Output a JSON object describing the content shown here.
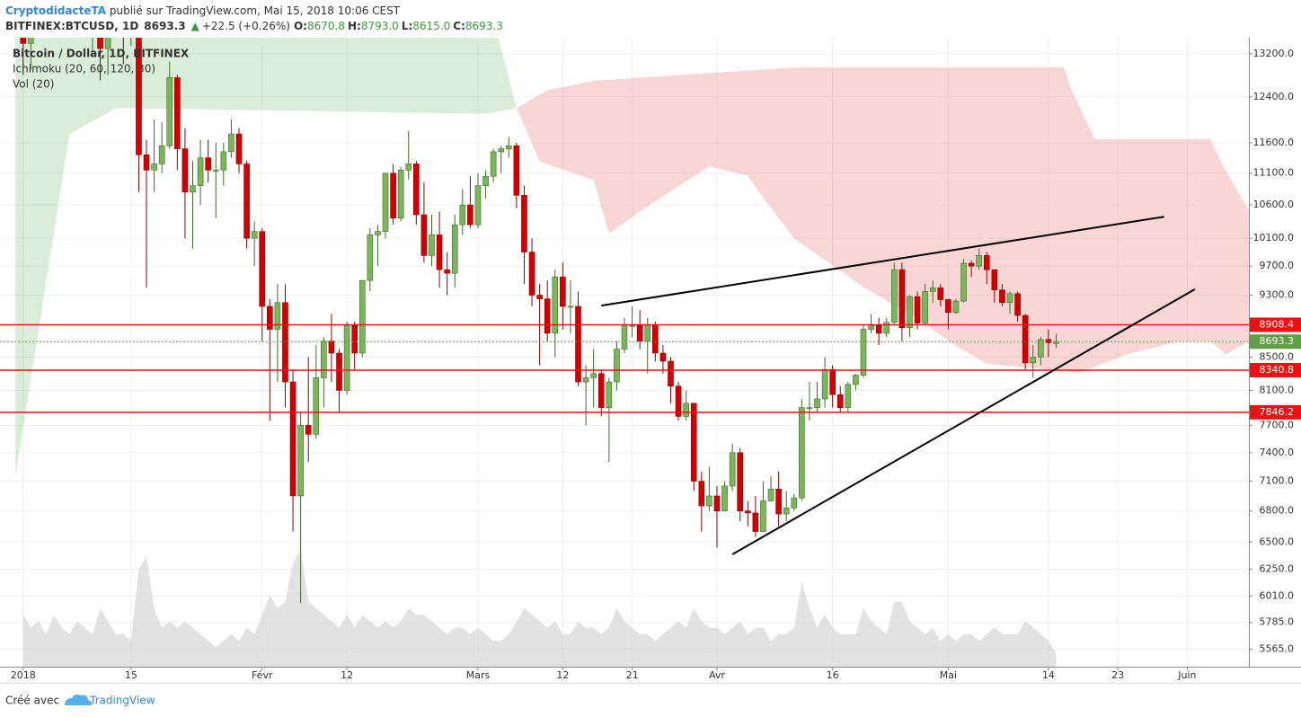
{
  "header": {
    "author": "CryptodidacteTA",
    "published": " publié sur TradingView.com, Mai 15, 2018 10:06 CEST",
    "symbol": "BITFINEX:BTCUSD, 1D",
    "last": "8693.3",
    "arrow": "▲",
    "change": "+22.5 (+0.26%)",
    "o_label": "O:",
    "o": "8670.8",
    "h_label": "H:",
    "h": "8793.0",
    "l_label": "L:",
    "l": "8615.0",
    "c_label": "C:",
    "c": "8693.3"
  },
  "legend": [
    "Bitcoin / Dollar, 1D, BITFINEX",
    "Ichimoku (20, 60, 120, 30)",
    "Vol (20)"
  ],
  "footer": {
    "made_with": "Créé avec",
    "brand": "TradingView"
  },
  "chart_data": {
    "type": "candlestick",
    "log_scale": true,
    "grid": true,
    "up_color": "#7cb65a",
    "up_border": "#3d6b2a",
    "down_color": "#d40000",
    "down_border": "#8a0000",
    "volume_color": "#cfcfcf",
    "xlim": [
      "2017-12-29",
      "2018-06-09"
    ],
    "ylim": [
      5425,
      13510
    ],
    "xticks": [
      {
        "value": "2018-01-01",
        "label": "2018"
      },
      {
        "value": "2018-01-15",
        "label": "15"
      },
      {
        "value": "2018-02-01",
        "label": "Févr"
      },
      {
        "value": "2018-02-12",
        "label": "12"
      },
      {
        "value": "2018-03-01",
        "label": "Mars"
      },
      {
        "value": "2018-03-12",
        "label": "12"
      },
      {
        "value": "2018-03-21",
        "label": "21"
      },
      {
        "value": "2018-04-01",
        "label": "Avr"
      },
      {
        "value": "2018-04-16",
        "label": "16"
      },
      {
        "value": "2018-05-01",
        "label": "Mai"
      },
      {
        "value": "2018-05-14",
        "label": "14"
      },
      {
        "value": "2018-05-23",
        "label": "23"
      },
      {
        "value": "2018-06-01",
        "label": "Juin"
      }
    ],
    "yticks": [
      {
        "value": 13200,
        "label": "13200.0"
      },
      {
        "value": 12400,
        "label": "12400.0"
      },
      {
        "value": 11600,
        "label": "11600.0"
      },
      {
        "value": 11100,
        "label": "11100.0"
      },
      {
        "value": 10600,
        "label": "10600.0"
      },
      {
        "value": 10100,
        "label": "10100.0"
      },
      {
        "value": 9700,
        "label": "9700.0"
      },
      {
        "value": 9300,
        "label": "9300.0"
      },
      {
        "value": 8500,
        "label": "8500.0"
      },
      {
        "value": 8100,
        "label": "8100.0"
      },
      {
        "value": 7700,
        "label": "7700.0"
      },
      {
        "value": 7400,
        "label": "7400.0"
      },
      {
        "value": 7100,
        "label": "7100.0"
      },
      {
        "value": 6800,
        "label": "6800.0"
      },
      {
        "value": 6500,
        "label": "6500.0"
      },
      {
        "value": 6250,
        "label": "6250.0"
      },
      {
        "value": 6010,
        "label": "6010.0"
      },
      {
        "value": 5785,
        "label": "5785.0"
      },
      {
        "value": 5565,
        "label": "5565.0"
      }
    ],
    "x": [
      "2018-01-01",
      "2018-01-02",
      "2018-01-03",
      "2018-01-04",
      "2018-01-05",
      "2018-01-06",
      "2018-01-07",
      "2018-01-08",
      "2018-01-09",
      "2018-01-10",
      "2018-01-11",
      "2018-01-12",
      "2018-01-13",
      "2018-01-14",
      "2018-01-15",
      "2018-01-16",
      "2018-01-17",
      "2018-01-18",
      "2018-01-19",
      "2018-01-20",
      "2018-01-21",
      "2018-01-22",
      "2018-01-23",
      "2018-01-24",
      "2018-01-25",
      "2018-01-26",
      "2018-01-27",
      "2018-01-28",
      "2018-01-29",
      "2018-01-30",
      "2018-01-31",
      "2018-02-01",
      "2018-02-02",
      "2018-02-03",
      "2018-02-04",
      "2018-02-05",
      "2018-02-06",
      "2018-02-07",
      "2018-02-08",
      "2018-02-09",
      "2018-02-10",
      "2018-02-11",
      "2018-02-12",
      "2018-02-13",
      "2018-02-14",
      "2018-02-15",
      "2018-02-16",
      "2018-02-17",
      "2018-02-18",
      "2018-02-19",
      "2018-02-20",
      "2018-02-21",
      "2018-02-22",
      "2018-02-23",
      "2018-02-24",
      "2018-02-25",
      "2018-02-26",
      "2018-02-27",
      "2018-02-28",
      "2018-03-01",
      "2018-03-02",
      "2018-03-03",
      "2018-03-04",
      "2018-03-05",
      "2018-03-06",
      "2018-03-07",
      "2018-03-08",
      "2018-03-09",
      "2018-03-10",
      "2018-03-11",
      "2018-03-12",
      "2018-03-13",
      "2018-03-14",
      "2018-03-15",
      "2018-03-16",
      "2018-03-17",
      "2018-03-18",
      "2018-03-19",
      "2018-03-20",
      "2018-03-21",
      "2018-03-22",
      "2018-03-23",
      "2018-03-24",
      "2018-03-25",
      "2018-03-26",
      "2018-03-27",
      "2018-03-28",
      "2018-03-29",
      "2018-03-30",
      "2018-03-31",
      "2018-04-01",
      "2018-04-02",
      "2018-04-03",
      "2018-04-04",
      "2018-04-05",
      "2018-04-06",
      "2018-04-07",
      "2018-04-08",
      "2018-04-09",
      "2018-04-10",
      "2018-04-11",
      "2018-04-12",
      "2018-04-13",
      "2018-04-14",
      "2018-04-15",
      "2018-04-16",
      "2018-04-17",
      "2018-04-18",
      "2018-04-19",
      "2018-04-20",
      "2018-04-21",
      "2018-04-22",
      "2018-04-23",
      "2018-04-24",
      "2018-04-25",
      "2018-04-26",
      "2018-04-27",
      "2018-04-28",
      "2018-04-29",
      "2018-04-30",
      "2018-05-01",
      "2018-05-02",
      "2018-05-03",
      "2018-05-04",
      "2018-05-05",
      "2018-05-06",
      "2018-05-07",
      "2018-05-08",
      "2018-05-09",
      "2018-05-10",
      "2018-05-11",
      "2018-05-12",
      "2018-05-13",
      "2018-05-14",
      "2018-05-15"
    ],
    "open": [
      13850,
      13400,
      14750,
      15100,
      15150,
      16900,
      17150,
      16200,
      14900,
      14400,
      14900,
      13300,
      13800,
      14200,
      13600,
      13600,
      11400,
      11150,
      11250,
      11550,
      12750,
      11500,
      10800,
      10900,
      11350,
      11150,
      11150,
      11450,
      11750,
      11250,
      10100,
      10200,
      9150,
      8850,
      9200,
      8200,
      6950,
      7700,
      7600,
      8250,
      8700,
      8550,
      8100,
      8900,
      8550,
      9500,
      10150,
      10200,
      11100,
      10400,
      11150,
      11250,
      10450,
      9850,
      10150,
      9650,
      9600,
      10300,
      10600,
      10300,
      10900,
      11050,
      11450,
      11500,
      11550,
      10750,
      9900,
      9300,
      9250,
      8800,
      9550,
      9150,
      9150,
      8200,
      8250,
      8300,
      7900,
      8200,
      8600,
      8900,
      8900,
      8700,
      8900,
      8550,
      8450,
      8150,
      7800,
      7950,
      7100,
      6850,
      6950,
      6800,
      7050,
      7400,
      6800,
      6780,
      6600,
      6900,
      7020,
      6770,
      6830,
      6930,
      7900,
      7900,
      8000,
      8350,
      8050,
      7900,
      8170,
      8280,
      8850,
      8900,
      8800,
      8940,
      9650,
      8870,
      9280,
      8930,
      9350,
      9400,
      9240,
      9070,
      9220,
      9740,
      9700,
      9850,
      9650,
      9370,
      9200,
      9320,
      9030,
      8430,
      8500,
      8720,
      8670.8
    ],
    "high": [
      13900,
      15400,
      15450,
      15700,
      17150,
      17250,
      17100,
      16300,
      15350,
      14900,
      14950,
      14150,
      14450,
      14500,
      14200,
      13650,
      11650,
      12000,
      11950,
      13050,
      12800,
      11850,
      11300,
      11650,
      11650,
      11600,
      11600,
      12000,
      11850,
      11300,
      10350,
      10250,
      9250,
      9450,
      9450,
      8350,
      7850,
      8500,
      8650,
      8750,
      9050,
      8600,
      8950,
      8950,
      9500,
      10250,
      10300,
      11100,
      11250,
      11200,
      11800,
      11300,
      10950,
      10450,
      10500,
      9900,
      10450,
      10850,
      11050,
      11100,
      11150,
      11500,
      11550,
      11700,
      11600,
      10900,
      10100,
      9450,
      9500,
      9650,
      9750,
      9500,
      9350,
      8400,
      8600,
      8350,
      8250,
      8700,
      9000,
      9150,
      9100,
      9000,
      8950,
      8650,
      8500,
      8200,
      8100,
      7950,
      7200,
      7250,
      7050,
      7100,
      7500,
      7450,
      6900,
      6950,
      7100,
      7150,
      7200,
      7000,
      6970,
      8000,
      8200,
      8200,
      8500,
      8400,
      8150,
      8200,
      8300,
      8900,
      9050,
      9000,
      9000,
      9750,
      9750,
      9300,
      9350,
      9450,
      9500,
      9450,
      9250,
      9250,
      9800,
      9780,
      9950,
      9900,
      9650,
      9450,
      9350,
      9350,
      9050,
      8650,
      8750,
      8850,
      8793
    ],
    "low": [
      12800,
      12900,
      14600,
      14250,
      14850,
      16200,
      15800,
      14000,
      14150,
      13150,
      12700,
      12800,
      13700,
      13000,
      13350,
      10800,
      9400,
      10800,
      11100,
      11500,
      11150,
      10100,
      9950,
      10600,
      10950,
      10400,
      10900,
      11350,
      11100,
      9950,
      9700,
      8700,
      7750,
      8200,
      7900,
      6600,
      5950,
      7300,
      7550,
      7900,
      8200,
      7850,
      8050,
      8350,
      8500,
      9350,
      9700,
      10100,
      10300,
      10350,
      11000,
      10300,
      9750,
      9700,
      9400,
      9300,
      9400,
      10150,
      10250,
      10250,
      10700,
      10950,
      11100,
      11350,
      10550,
      9450,
      9150,
      8400,
      8700,
      8500,
      8850,
      8800,
      8150,
      7700,
      7900,
      7800,
      7300,
      8100,
      8550,
      8750,
      8600,
      8300,
      8450,
      8300,
      7950,
      7750,
      7750,
      7000,
      6600,
      6800,
      6450,
      6800,
      7000,
      6700,
      6650,
      6550,
      6600,
      6900,
      6650,
      6700,
      6800,
      6900,
      7750,
      7850,
      7900,
      7900,
      7850,
      7850,
      8100,
      8250,
      8800,
      8650,
      8750,
      8900,
      8700,
      8750,
      8850,
      8900,
      9200,
      9150,
      8850,
      9050,
      9200,
      9550,
      9650,
      9450,
      9200,
      9150,
      9050,
      8950,
      8350,
      8250,
      8400,
      8500,
      8615
    ],
    "close": [
      13400,
      14750,
      15100,
      15150,
      16900,
      17150,
      16200,
      14900,
      14400,
      14900,
      13300,
      13800,
      14200,
      13600,
      13600,
      11400,
      11150,
      11250,
      11550,
      12750,
      11500,
      10800,
      10900,
      11350,
      11150,
      11150,
      11450,
      11750,
      11250,
      10100,
      10200,
      9150,
      8850,
      9200,
      8200,
      6950,
      7700,
      7600,
      8250,
      8700,
      8550,
      8100,
      8900,
      8550,
      9500,
      10150,
      10200,
      11100,
      10400,
      11150,
      11250,
      10450,
      9850,
      10150,
      9650,
      9600,
      10300,
      10600,
      10300,
      10900,
      11050,
      11450,
      11500,
      11550,
      10750,
      9900,
      9300,
      9250,
      8800,
      9550,
      9150,
      9150,
      8200,
      8250,
      8300,
      7900,
      8200,
      8600,
      8900,
      8900,
      8700,
      8900,
      8550,
      8450,
      8150,
      7800,
      7950,
      7100,
      6850,
      6950,
      6800,
      7050,
      7400,
      6800,
      6780,
      6600,
      6900,
      7020,
      6770,
      6830,
      6930,
      7900,
      7900,
      8000,
      8350,
      8050,
      7900,
      8170,
      8280,
      8850,
      8900,
      8800,
      8940,
      9650,
      8870,
      9280,
      8930,
      9350,
      9400,
      9240,
      9070,
      9220,
      9740,
      9700,
      9850,
      9650,
      9370,
      9200,
      9320,
      9030,
      8430,
      8500,
      8720,
      8680,
      8693.3
    ],
    "volume": [
      40,
      30,
      35,
      25,
      40,
      30,
      25,
      35,
      30,
      25,
      45,
      35,
      25,
      25,
      20,
      75,
      85,
      45,
      30,
      35,
      30,
      35,
      30,
      25,
      20,
      15,
      20,
      25,
      20,
      30,
      25,
      40,
      55,
      45,
      50,
      80,
      90,
      50,
      45,
      40,
      35,
      30,
      40,
      30,
      40,
      35,
      30,
      35,
      30,
      35,
      45,
      40,
      40,
      35,
      30,
      25,
      30,
      30,
      25,
      30,
      25,
      20,
      20,
      25,
      35,
      45,
      40,
      35,
      30,
      35,
      25,
      25,
      35,
      30,
      30,
      25,
      30,
      45,
      35,
      30,
      25,
      25,
      20,
      25,
      30,
      35,
      30,
      45,
      35,
      30,
      30,
      25,
      30,
      35,
      25,
      30,
      30,
      20,
      25,
      25,
      30,
      65,
      45,
      30,
      40,
      30,
      25,
      25,
      25,
      45,
      35,
      30,
      25,
      50,
      50,
      35,
      30,
      25,
      30,
      20,
      25,
      20,
      25,
      25,
      20,
      25,
      30,
      25,
      25,
      25,
      35,
      30,
      25,
      20,
      10
    ],
    "clouds": [
      {
        "color": "rgba(120,190,120,0.28)",
        "x_upper": [
          "2017-12-31",
          "2018-03-02",
          "2018-03-06"
        ],
        "upper": [
          14500,
          14500,
          12200
        ],
        "x_lower": [
          "2017-12-31",
          "2018-01-07",
          "2018-01-13",
          "2018-03-02",
          "2018-03-06"
        ],
        "lower": [
          7150,
          11740,
          12200,
          12100,
          12200
        ]
      },
      {
        "color": "rgba(235,120,120,0.30)",
        "x_upper": [
          "2018-03-06",
          "2018-03-10",
          "2018-03-16",
          "2018-04-11",
          "2018-05-16",
          "2018-05-17",
          "2018-05-20",
          "2018-06-04",
          "2018-06-06",
          "2018-06-09"
        ],
        "upper": [
          12200,
          12520,
          12690,
          12940,
          12940,
          12520,
          11660,
          11660,
          11140,
          10510
        ],
        "x_lower": [
          "2018-03-06",
          "2018-03-09",
          "2018-03-16",
          "2018-03-18",
          "2018-03-23",
          "2018-03-31",
          "2018-04-05",
          "2018-04-07",
          "2018-04-11",
          "2018-04-20",
          "2018-04-26",
          "2018-05-02",
          "2018-05-06",
          "2018-05-18",
          "2018-05-24",
          "2018-05-31",
          "2018-06-04",
          "2018-06-06",
          "2018-06-09"
        ],
        "lower": [
          12200,
          11290,
          10990,
          10170,
          10580,
          11210,
          11060,
          10710,
          10100,
          9410,
          9050,
          8640,
          8420,
          8310,
          8530,
          8700,
          8700,
          8530,
          8700
        ]
      }
    ],
    "hlines": [
      {
        "value": 8908.4,
        "label": "8908.4",
        "color": "#ee1111",
        "dash": false
      },
      {
        "value": 8693.3,
        "label": "8693.3",
        "color": "#5e9e45",
        "dash": true
      },
      {
        "value": 8340.8,
        "label": "8340.8",
        "color": "#ee1111",
        "dash": false
      },
      {
        "value": 7846.2,
        "label": "7846.2",
        "color": "#ee1111",
        "dash": false
      }
    ],
    "trendlines": [
      {
        "x": [
          "2018-03-17",
          "2018-05-29"
        ],
        "y": [
          9160,
          10420
        ]
      },
      {
        "x": [
          "2018-04-03",
          "2018-06-02"
        ],
        "y": [
          6385,
          9380
        ]
      }
    ]
  }
}
